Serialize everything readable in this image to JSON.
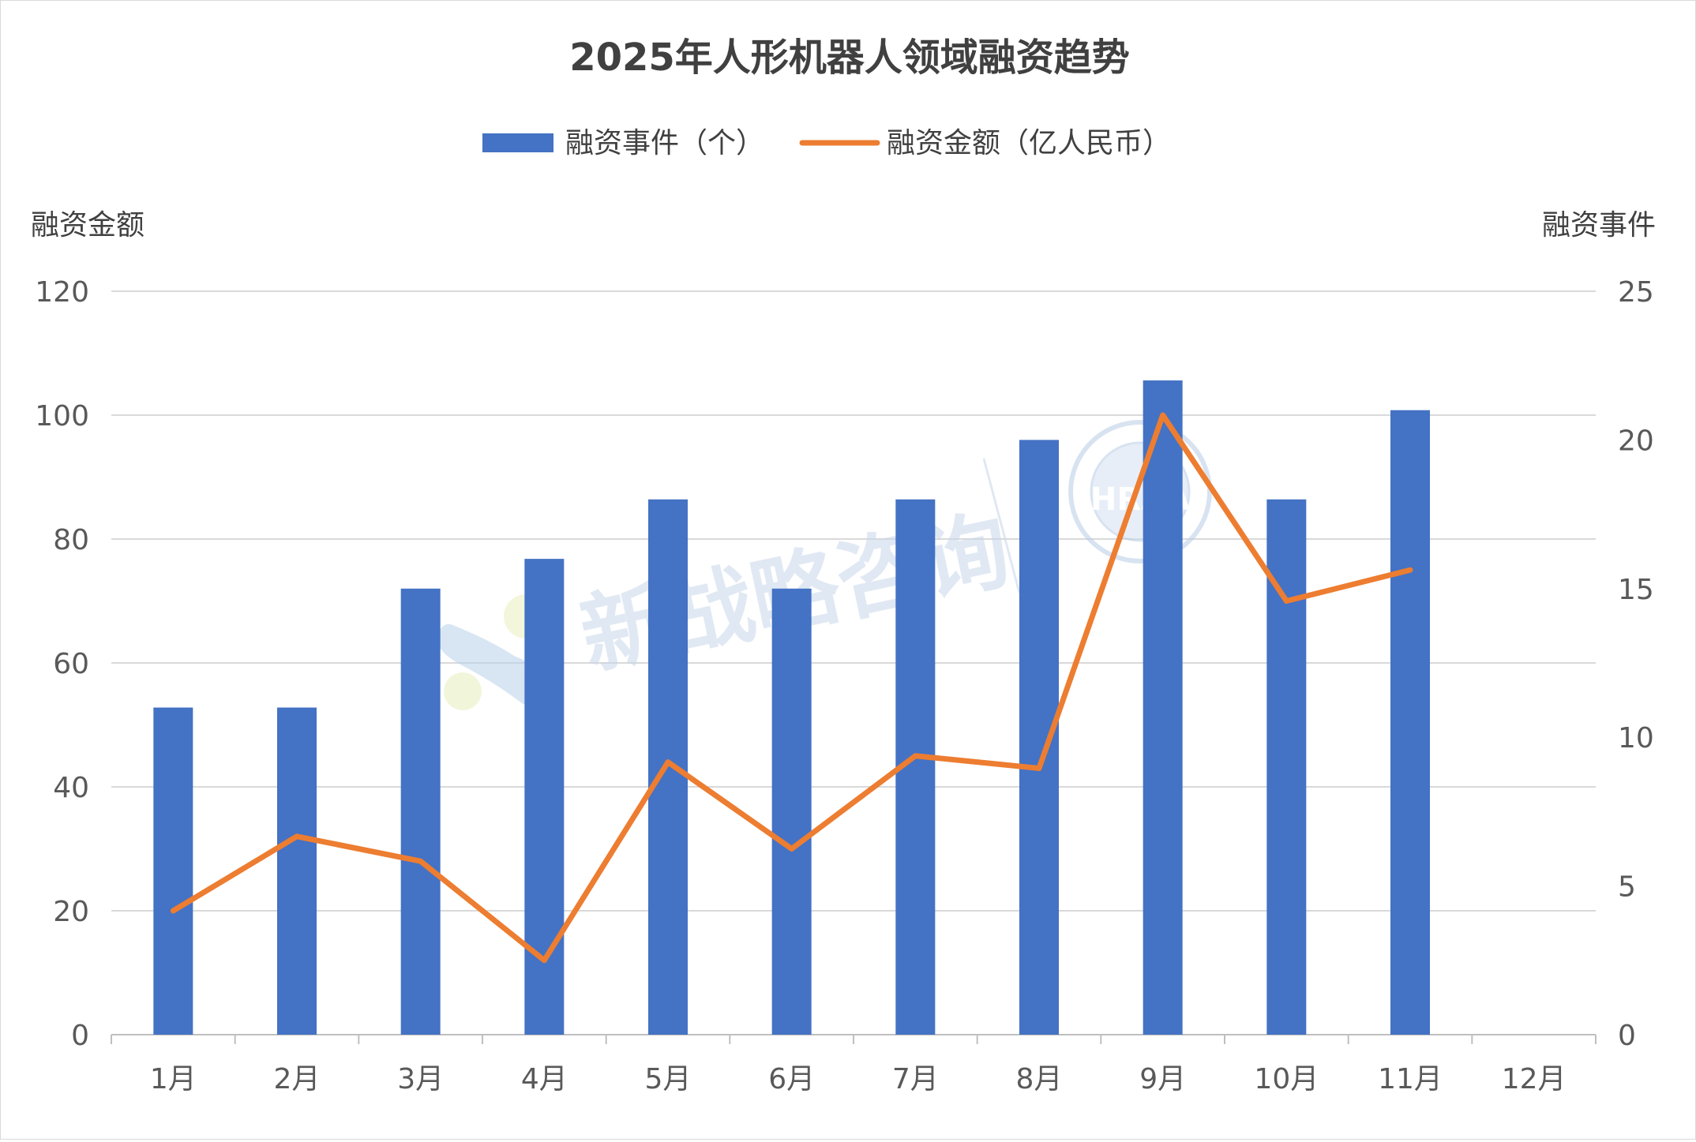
{
  "chart_data": {
    "type": "bar",
    "title": "2025年人形机器人领域融资趋势",
    "y_left_label": "融资金额",
    "y_right_label": "融资事件",
    "categories": [
      "1月",
      "2月",
      "3月",
      "4月",
      "5月",
      "6月",
      "7月",
      "8月",
      "9月",
      "10月",
      "11月",
      "12月"
    ],
    "y_left_ticks": [
      "0",
      "20",
      "40",
      "60",
      "80",
      "100",
      "120"
    ],
    "y_right_ticks": [
      "0",
      "5",
      "10",
      "15",
      "20",
      "25"
    ],
    "y_left_range": [
      0,
      120
    ],
    "y_right_range": [
      0,
      25
    ],
    "grid": true,
    "legend_position": "top-center",
    "series": [
      {
        "name": "融资事件（个）",
        "type": "bar",
        "axis": "right",
        "color": "#4472c4",
        "values": [
          11,
          11,
          15,
          16,
          18,
          15,
          18,
          20,
          22,
          18,
          21,
          null
        ]
      },
      {
        "name": "融资金额（亿人民币）",
        "type": "line",
        "axis": "left",
        "color": "#ed7d31",
        "values": [
          20,
          32,
          28,
          12,
          44,
          30,
          45,
          43,
          100,
          70,
          75,
          null
        ]
      }
    ]
  },
  "watermark": {
    "brand_text": "新战略咨询",
    "seal_text": "HRAA",
    "seal_ring_text": "人形机器人场景应用联盟"
  }
}
